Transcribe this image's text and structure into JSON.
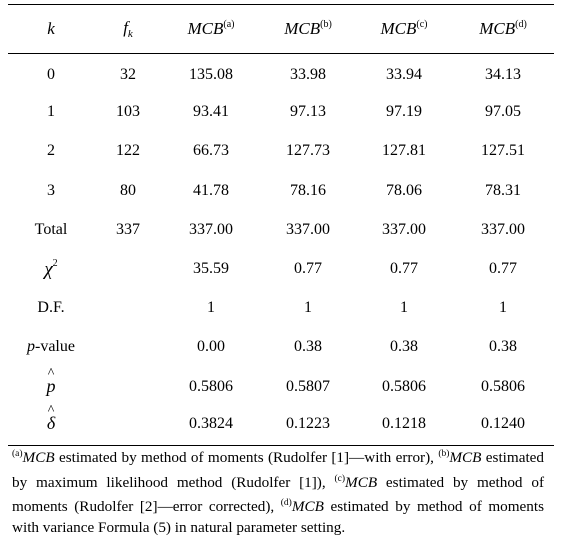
{
  "table": {
    "headers": {
      "k": "k",
      "f_base": "f",
      "f_sub": "k",
      "mcb": "MCB",
      "sup_a": "(a)",
      "sup_b": "(b)",
      "sup_c": "(c)",
      "sup_d": "(d)"
    },
    "rows": [
      [
        "0",
        "32",
        "135.08",
        "33.98",
        "33.94",
        "34.13"
      ],
      [
        "1",
        "103",
        "93.41",
        "97.13",
        "97.19",
        "97.05"
      ],
      [
        "2",
        "122",
        "66.73",
        "127.73",
        "127.81",
        "127.51"
      ],
      [
        "3",
        "80",
        "41.78",
        "78.16",
        "78.06",
        "78.31"
      ],
      [
        "Total",
        "337",
        "337.00",
        "337.00",
        "337.00",
        "337.00"
      ]
    ],
    "chi": {
      "symbol": "χ",
      "sup": "2",
      "values": [
        "35.59",
        "0.77",
        "0.77",
        "0.77"
      ]
    },
    "df": {
      "label": "D.F.",
      "values": [
        "1",
        "1",
        "1",
        "1"
      ]
    },
    "pvalue": {
      "label_p": "p",
      "label_rest": "-value",
      "values": [
        "0.00",
        "0.38",
        "0.38",
        "0.38"
      ]
    },
    "phat": {
      "symbol": "p",
      "values": [
        "0.5806",
        "0.5807",
        "0.5806",
        "0.5806"
      ]
    },
    "deltahat": {
      "symbol": "δ",
      "values": [
        "0.3824",
        "0.1223",
        "0.1218",
        "0.1240"
      ]
    }
  },
  "notes": {
    "a_sup": "(a)",
    "a_mcb": "MCB",
    "a_text": " estimated by method of moments (Rudolfer [1]—with error), ",
    "b_sup": "(b)",
    "b_mcb": "MCB",
    "b_text": " estimated by maximum likelihood method (Rudolfer [1]), ",
    "c_sup": "(c)",
    "c_mcb": "MCB",
    "c_text": " estimated by method of moments (Rudolfer [2]—error corrected), ",
    "d_sup": "(d)",
    "d_mcb": "MCB",
    "d_text": " estimated by method of moments with variance Formula (5) in natural parameter setting."
  }
}
